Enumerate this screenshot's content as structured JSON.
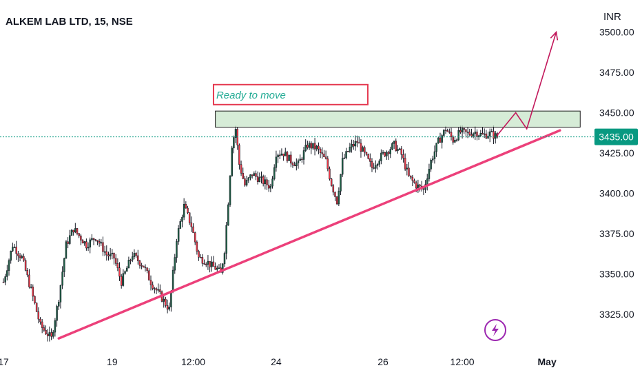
{
  "header": {
    "symbol": "ALKEM LAB LTD, 15, NSE"
  },
  "price_axis": {
    "currency": "INR",
    "last_price_label": "3435.00"
  },
  "time_axis": {
    "labels": [
      {
        "text": "17",
        "bold": false
      },
      {
        "text": "19",
        "bold": false
      },
      {
        "text": "12:00",
        "bold": false
      },
      {
        "text": "24",
        "bold": false
      },
      {
        "text": "26",
        "bold": false
      },
      {
        "text": "12:00",
        "bold": false
      },
      {
        "text": "May",
        "bold": true
      }
    ]
  },
  "annotations": {
    "note": "Ready to move"
  },
  "colors": {
    "up": "#089981",
    "down": "#f23645",
    "candle_body": "#1f5f45",
    "candle_outline": "#131722",
    "trendline": "#ec407a",
    "projection": "#c2185b",
    "zone_fill": "#c8e6c9",
    "zone_border": "#1b1b1b",
    "note_border": "#e53950",
    "note_text": "#22ab94",
    "last_price": "#089981",
    "flash_icon": "#9c27b0"
  },
  "icons": {
    "alert": "flash-icon",
    "projection": "arrow-up-right-icon"
  },
  "chart_data": {
    "type": "candlestick",
    "title": "ALKEM LAB LTD, 15, NSE",
    "ylabel": "INR",
    "ylim": [
      3305,
      3505
    ],
    "yticks": [
      3325,
      3350,
      3375,
      3400,
      3425,
      3450,
      3475
    ],
    "grid": false,
    "last_price": 3435.0,
    "x_index_range": [
      0,
      270
    ],
    "x_ticks": [
      {
        "label": "17",
        "index": 0
      },
      {
        "label": "19",
        "index": 59
      },
      {
        "label": "12:00",
        "index": 103
      },
      {
        "label": "24",
        "index": 148
      },
      {
        "label": "26",
        "index": 206
      },
      {
        "label": "12:00",
        "index": 249
      },
      {
        "label": "May",
        "index": 295
      }
    ],
    "price_path": [
      [
        0,
        3345
      ],
      [
        5,
        3368
      ],
      [
        10,
        3360
      ],
      [
        15,
        3340
      ],
      [
        20,
        3318
      ],
      [
        26,
        3310
      ],
      [
        30,
        3335
      ],
      [
        34,
        3368
      ],
      [
        38,
        3378
      ],
      [
        45,
        3368
      ],
      [
        50,
        3373
      ],
      [
        56,
        3362
      ],
      [
        60,
        3360
      ],
      [
        64,
        3345
      ],
      [
        70,
        3362
      ],
      [
        76,
        3355
      ],
      [
        80,
        3345
      ],
      [
        86,
        3335
      ],
      [
        90,
        3328
      ],
      [
        94,
        3372
      ],
      [
        98,
        3392
      ],
      [
        102,
        3380
      ],
      [
        106,
        3360
      ],
      [
        110,
        3358
      ],
      [
        113,
        3355
      ],
      [
        116,
        3353
      ],
      [
        118,
        3350
      ],
      [
        120,
        3365
      ],
      [
        122,
        3395
      ],
      [
        124,
        3430
      ],
      [
        126,
        3440
      ],
      [
        128,
        3418
      ],
      [
        131,
        3405
      ],
      [
        135,
        3412
      ],
      [
        140,
        3408
      ],
      [
        145,
        3404
      ],
      [
        148,
        3425
      ],
      [
        152,
        3425
      ],
      [
        156,
        3420
      ],
      [
        160,
        3418
      ],
      [
        165,
        3430
      ],
      [
        170,
        3428
      ],
      [
        175,
        3420
      ],
      [
        178,
        3406
      ],
      [
        181,
        3395
      ],
      [
        184,
        3420
      ],
      [
        188,
        3428
      ],
      [
        192,
        3432
      ],
      [
        196,
        3424
      ],
      [
        200,
        3416
      ],
      [
        204,
        3422
      ],
      [
        208,
        3426
      ],
      [
        212,
        3430
      ],
      [
        216,
        3424
      ],
      [
        220,
        3410
      ],
      [
        224,
        3405
      ],
      [
        228,
        3402
      ],
      [
        232,
        3420
      ],
      [
        236,
        3432
      ],
      [
        240,
        3440
      ],
      [
        244,
        3433
      ],
      [
        248,
        3438
      ],
      [
        252,
        3437
      ],
      [
        256,
        3438
      ],
      [
        260,
        3436
      ],
      [
        264,
        3437
      ],
      [
        268,
        3435
      ]
    ],
    "resistance_zone": {
      "index_from": 115,
      "index_to": 313,
      "price_low": 3441,
      "price_high": 3451
    },
    "trendline": [
      {
        "index": 30,
        "price": 3310
      },
      {
        "index": 302,
        "price": 3439
      }
    ],
    "projection_path": [
      {
        "index": 268,
        "price": 3436
      },
      {
        "index": 278,
        "price": 3450
      },
      {
        "index": 284,
        "price": 3440
      },
      {
        "index": 300,
        "price": 3500
      }
    ],
    "note_anchor": {
      "index": 114,
      "price": 3455
    }
  }
}
